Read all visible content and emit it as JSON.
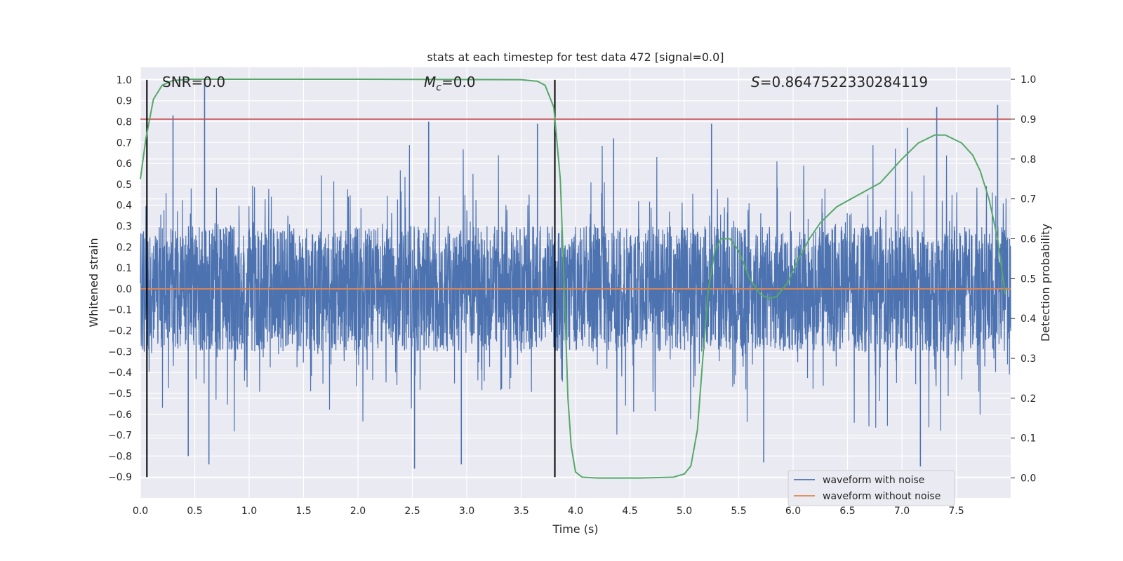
{
  "chart_data": {
    "type": "line",
    "title": "stats at each timestep for test data 472 [signal=0.0]",
    "xlabel": "Time (s)",
    "ylabel": "Whitened strain",
    "ylabel_right": "Detection probability",
    "xlim": [
      0.0,
      8.0
    ],
    "ylim": [
      -1.0,
      1.06
    ],
    "ylim_right": [
      -0.05,
      1.03
    ],
    "x_ticks": [
      "0.0",
      "0.5",
      "1.0",
      "1.5",
      "2.0",
      "2.5",
      "3.0",
      "3.5",
      "4.0",
      "4.5",
      "5.0",
      "5.5",
      "6.0",
      "6.5",
      "7.0",
      "7.5"
    ],
    "y_ticks": [
      "1.0",
      "0.9",
      "0.8",
      "0.7",
      "0.6",
      "0.5",
      "0.4",
      "0.3",
      "0.2",
      "0.1",
      "0.0",
      "−0.1",
      "−0.2",
      "−0.3",
      "−0.4",
      "−0.5",
      "−0.6",
      "−0.7",
      "−0.8",
      "−0.9"
    ],
    "y_ticks_right": [
      "1.0",
      "0.9",
      "0.8",
      "0.7",
      "0.6",
      "0.5",
      "0.4",
      "0.3",
      "0.2",
      "0.1",
      "0.0"
    ],
    "grid": true,
    "annotations": {
      "snr": "SNR=0.0",
      "mc_symbol": "M",
      "mc_sub": "c",
      "mc_value": "=0.0",
      "s_symbol": "S",
      "s_value": "=0.8647522330284119"
    },
    "threshold_right": 0.9,
    "vlines_x": [
      0.06,
      3.81
    ],
    "vline_yrange": [
      -0.9,
      1.0
    ],
    "series": [
      {
        "name": "waveform with noise",
        "color": "#4c72b0",
        "noise_envelope": 0.3,
        "spikes": [
          [
            0.59,
            1.0
          ],
          [
            0.3,
            0.83
          ],
          [
            0.63,
            -0.84
          ],
          [
            0.44,
            -0.8
          ],
          [
            2.65,
            0.8
          ],
          [
            2.52,
            -0.86
          ],
          [
            2.95,
            -0.84
          ],
          [
            3.65,
            0.79
          ],
          [
            5.25,
            0.79
          ],
          [
            5.73,
            -0.83
          ],
          [
            7.17,
            -0.85
          ],
          [
            7.32,
            0.87
          ],
          [
            7.88,
            0.88
          ],
          [
            7.05,
            0.77
          ],
          [
            4.35,
            0.72
          ]
        ]
      },
      {
        "name": "waveform without noise",
        "color": "#dd8452",
        "values": [
          [
            0.0,
            0.0
          ],
          [
            8.0,
            0.0
          ]
        ]
      },
      {
        "name": "",
        "axis": "right",
        "color": "#55a868",
        "values": [
          [
            0.0,
            0.75
          ],
          [
            0.05,
            0.85
          ],
          [
            0.12,
            0.95
          ],
          [
            0.2,
            0.985
          ],
          [
            0.3,
            0.997
          ],
          [
            0.45,
            1.0
          ],
          [
            2.0,
            1.0
          ],
          [
            3.5,
            0.999
          ],
          [
            3.65,
            0.995
          ],
          [
            3.72,
            0.985
          ],
          [
            3.8,
            0.93
          ],
          [
            3.86,
            0.75
          ],
          [
            3.9,
            0.45
          ],
          [
            3.93,
            0.2
          ],
          [
            3.96,
            0.08
          ],
          [
            4.0,
            0.015
          ],
          [
            4.06,
            0.002
          ],
          [
            4.2,
            0.0
          ],
          [
            4.6,
            0.0
          ],
          [
            4.9,
            0.002
          ],
          [
            5.0,
            0.01
          ],
          [
            5.06,
            0.03
          ],
          [
            5.12,
            0.12
          ],
          [
            5.17,
            0.3
          ],
          [
            5.22,
            0.47
          ],
          [
            5.28,
            0.57
          ],
          [
            5.34,
            0.6
          ],
          [
            5.42,
            0.6
          ],
          [
            5.5,
            0.57
          ],
          [
            5.6,
            0.5
          ],
          [
            5.7,
            0.46
          ],
          [
            5.78,
            0.45
          ],
          [
            5.85,
            0.455
          ],
          [
            5.95,
            0.49
          ],
          [
            6.05,
            0.55
          ],
          [
            6.15,
            0.6
          ],
          [
            6.25,
            0.64
          ],
          [
            6.4,
            0.68
          ],
          [
            6.6,
            0.71
          ],
          [
            6.8,
            0.74
          ],
          [
            7.0,
            0.8
          ],
          [
            7.15,
            0.84
          ],
          [
            7.3,
            0.86
          ],
          [
            7.4,
            0.86
          ],
          [
            7.55,
            0.84
          ],
          [
            7.65,
            0.81
          ],
          [
            7.72,
            0.77
          ],
          [
            7.8,
            0.7
          ],
          [
            7.88,
            0.6
          ],
          [
            7.95,
            0.46
          ]
        ]
      }
    ],
    "legend_placement": "lower-right",
    "colors": {
      "background": "#eaeaf2",
      "grid": "#ffffff",
      "threshold": "#c44e52",
      "vline": "#000000"
    }
  }
}
